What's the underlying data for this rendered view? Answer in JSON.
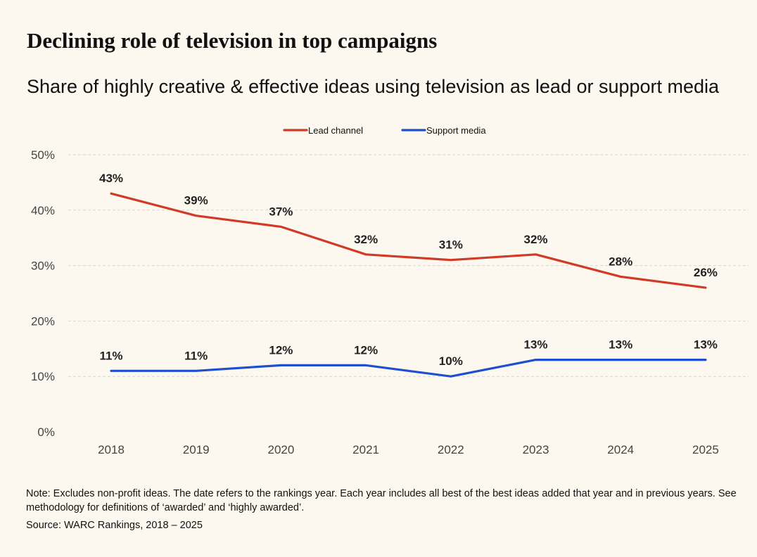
{
  "title": "Declining role of television in top campaigns",
  "subtitle": "Share of highly creative & effective ideas using television as lead or support media",
  "note": "Note: Excludes non-profit ideas. The date refers to the rankings year. Each year includes all best of the best ideas added that year and in previous years. See methodology for definitions of ‘awarded’ and ‘highly awarded’.",
  "source": "Source: WARC Rankings, 2018 – 2025",
  "colors": {
    "lead": "#d13a26",
    "support": "#1f4fcf",
    "grid": "#d9d6cf",
    "axis_text": "#444444",
    "background": "#fcf8ef"
  },
  "chart_data": {
    "type": "line",
    "categories": [
      "2018",
      "2019",
      "2020",
      "2021",
      "2022",
      "2023",
      "2024",
      "2025"
    ],
    "series": [
      {
        "name": "Lead channel",
        "color": "#d13a26",
        "values": [
          43,
          39,
          37,
          32,
          31,
          32,
          28,
          26
        ],
        "labels": [
          "43%",
          "39%",
          "37%",
          "32%",
          "31%",
          "32%",
          "28%",
          "26%"
        ]
      },
      {
        "name": "Support media",
        "color": "#1f4fcf",
        "values": [
          11,
          11,
          12,
          12,
          10,
          13,
          13,
          13
        ],
        "labels": [
          "11%",
          "11%",
          "12%",
          "12%",
          "10%",
          "13%",
          "13%",
          "13%"
        ]
      }
    ],
    "ylim": [
      0,
      50
    ],
    "yticks": [
      0,
      10,
      20,
      30,
      40,
      50
    ],
    "ytick_labels": [
      "0%",
      "10%",
      "20%",
      "30%",
      "40%",
      "50%"
    ],
    "grid": true,
    "legend_position": "top-center",
    "xlabel": "",
    "ylabel": ""
  }
}
